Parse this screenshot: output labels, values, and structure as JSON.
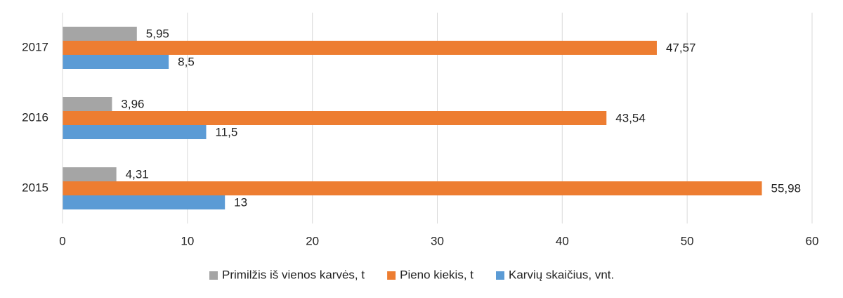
{
  "chart_data": {
    "type": "hbar",
    "categories": [
      "2015",
      "2016",
      "2017"
    ],
    "series": [
      {
        "name": "Primilžis iš vienos karvės, t",
        "color": "#a5a5a5",
        "values": [
          4.31,
          3.96,
          5.95
        ],
        "value_labels": [
          "4,31",
          "3,96",
          "5,95"
        ]
      },
      {
        "name": "Pieno kiekis, t",
        "color": "#ed7d31",
        "values": [
          55.98,
          43.54,
          47.57
        ],
        "value_labels": [
          "55,98",
          "43,54",
          "47,57"
        ]
      },
      {
        "name": "Karvių skaičius, vnt.",
        "color": "#5b9bd5",
        "values": [
          13,
          11.5,
          8.5
        ],
        "value_labels": [
          "13",
          "11,5",
          "8,5"
        ]
      }
    ],
    "xlim": [
      0,
      60
    ],
    "xticks": [
      0,
      10,
      20,
      30,
      40,
      50,
      60
    ],
    "grid": true,
    "legend": "bottom"
  }
}
